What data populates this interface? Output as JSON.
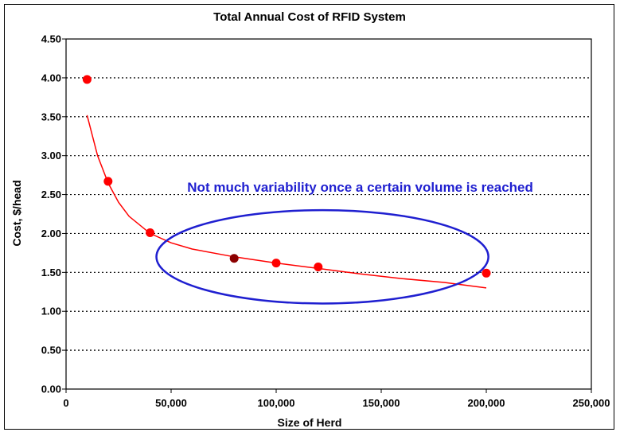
{
  "chart_data": {
    "type": "scatter",
    "title": "Total Annual Cost of RFID System",
    "xlabel": "Size of Herd",
    "ylabel": "Cost, $/head",
    "xlim": [
      0,
      250000
    ],
    "ylim": [
      0,
      4.5
    ],
    "x_ticks": [
      0,
      50000,
      100000,
      150000,
      200000,
      250000
    ],
    "x_tick_labels": [
      "0",
      "50,000",
      "100,000",
      "150,000",
      "200,000",
      "250,000"
    ],
    "y_ticks": [
      0,
      0.5,
      1.0,
      1.5,
      2.0,
      2.5,
      3.0,
      3.5,
      4.0,
      4.5
    ],
    "y_tick_labels": [
      "0.00",
      "0.50",
      "1.00",
      "1.50",
      "2.00",
      "2.50",
      "3.00",
      "3.50",
      "4.00",
      "4.50"
    ],
    "grid": "horizontal dotted",
    "points": [
      {
        "x": 10000,
        "y": 3.98,
        "color": "#ff0000"
      },
      {
        "x": 20000,
        "y": 2.67,
        "color": "#ff0000"
      },
      {
        "x": 40000,
        "y": 2.01,
        "color": "#ff0000"
      },
      {
        "x": 80000,
        "y": 1.68,
        "color": "#8b0000"
      },
      {
        "x": 100000,
        "y": 1.62,
        "color": "#ff0000"
      },
      {
        "x": 120000,
        "y": 1.57,
        "color": "#ff0000"
      },
      {
        "x": 200000,
        "y": 1.49,
        "color": "#ff0000"
      }
    ],
    "trendline": {
      "color": "#ff0000",
      "points": [
        [
          10000,
          3.52
        ],
        [
          15000,
          3.0
        ],
        [
          20000,
          2.65
        ],
        [
          25000,
          2.4
        ],
        [
          30000,
          2.22
        ],
        [
          40000,
          2.0
        ],
        [
          50000,
          1.88
        ],
        [
          60000,
          1.8
        ],
        [
          80000,
          1.7
        ],
        [
          100000,
          1.62
        ],
        [
          120000,
          1.55
        ],
        [
          140000,
          1.48
        ],
        [
          160000,
          1.42
        ],
        [
          180000,
          1.37
        ],
        [
          200000,
          1.3
        ]
      ]
    },
    "annotation": {
      "text": "Not much variability once a certain volume is reached",
      "color": "#1f1fd0",
      "x": 140000,
      "y": 2.6
    },
    "ellipse": {
      "color": "#1f1fd0",
      "center_x": 122000,
      "center_y": 1.7,
      "radius_x": 79000,
      "radius_y": 0.6
    }
  }
}
